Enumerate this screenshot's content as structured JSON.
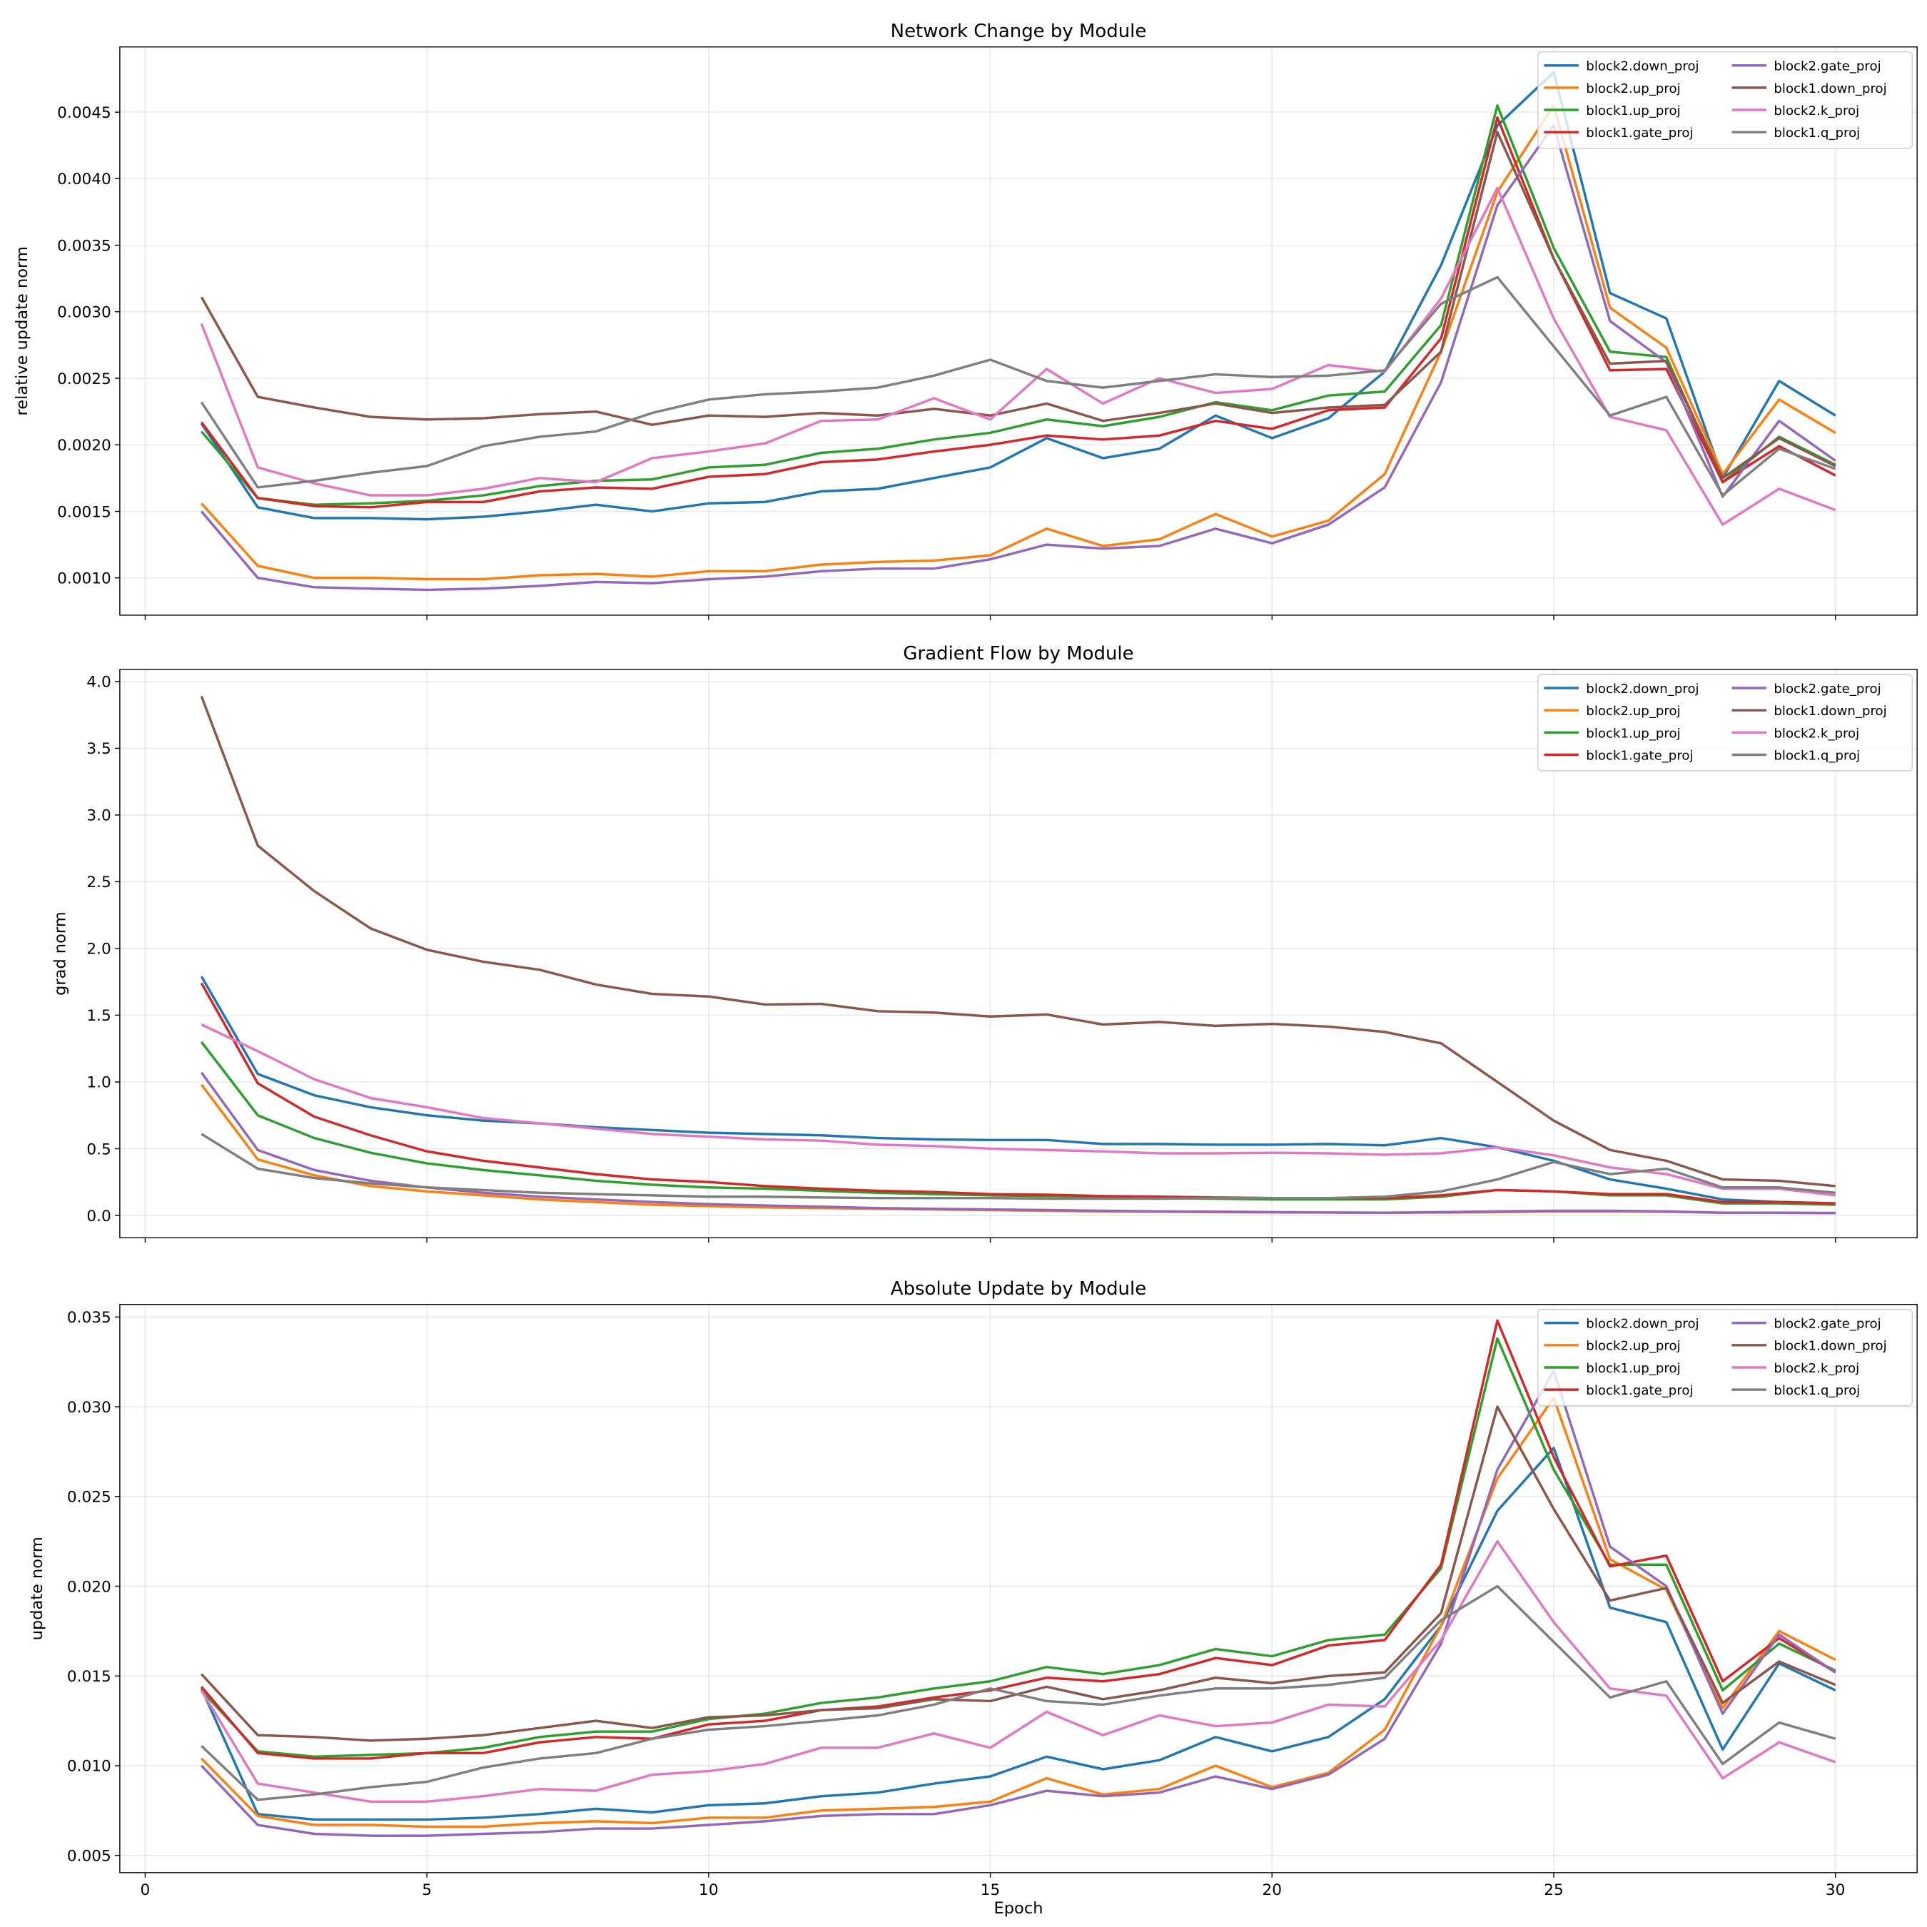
{
  "series_meta": [
    {
      "name": "block2.down_proj",
      "color": "#1f77b4"
    },
    {
      "name": "block2.up_proj",
      "color": "#ff7f0e"
    },
    {
      "name": "block1.up_proj",
      "color": "#2ca02c"
    },
    {
      "name": "block1.gate_proj",
      "color": "#d62728"
    },
    {
      "name": "block2.gate_proj",
      "color": "#9467bd"
    },
    {
      "name": "block1.down_proj",
      "color": "#8c564b"
    },
    {
      "name": "block2.k_proj",
      "color": "#e377c2"
    },
    {
      "name": "block1.q_proj",
      "color": "#7f7f7f"
    }
  ],
  "chart_data": [
    {
      "type": "line",
      "title": "Network Change by Module",
      "xlabel": "",
      "ylabel": "relative update norm",
      "xlim": [
        -0.45,
        31.45
      ],
      "ylim": [
        0.00072,
        0.00499
      ],
      "xticks": [
        0,
        5,
        10,
        15,
        20,
        25,
        30
      ],
      "xtick_labels_shown": false,
      "yticks": [
        "0.0010",
        "0.0015",
        "0.0020",
        "0.0025",
        "0.0030",
        "0.0035",
        "0.0040",
        "0.0045"
      ],
      "grid": true,
      "legend": "top-right",
      "x": [
        1,
        2,
        3,
        4,
        5,
        6,
        7,
        8,
        9,
        10,
        11,
        12,
        13,
        14,
        15,
        16,
        17,
        18,
        19,
        20,
        21,
        22,
        23,
        24,
        25,
        26,
        27,
        28,
        29,
        30
      ],
      "series": [
        {
          "name": "block2.down_proj",
          "values": [
            0.00216,
            0.00153,
            0.00145,
            0.00145,
            0.00144,
            0.00146,
            0.0015,
            0.00155,
            0.0015,
            0.00156,
            0.00157,
            0.00165,
            0.00167,
            0.00175,
            0.00183,
            0.00205,
            0.0019,
            0.00197,
            0.00222,
            0.00205,
            0.0022,
            0.00255,
            0.00335,
            0.0044,
            0.0048,
            0.00314,
            0.00295,
            0.00175,
            0.00248,
            0.00222
          ]
        },
        {
          "name": "block2.up_proj",
          "values": [
            0.00156,
            0.00109,
            0.001,
            0.001,
            0.00099,
            0.00099,
            0.00102,
            0.00103,
            0.00101,
            0.00105,
            0.00105,
            0.0011,
            0.00112,
            0.00113,
            0.00117,
            0.00137,
            0.00124,
            0.00129,
            0.00148,
            0.00131,
            0.00143,
            0.00178,
            0.0027,
            0.0039,
            0.00455,
            0.00303,
            0.00273,
            0.00178,
            0.00234,
            0.00209
          ]
        },
        {
          "name": "block1.up_proj",
          "values": [
            0.0021,
            0.0016,
            0.00155,
            0.00156,
            0.00158,
            0.00162,
            0.00169,
            0.00173,
            0.00174,
            0.00183,
            0.00185,
            0.00194,
            0.00197,
            0.00204,
            0.00209,
            0.00219,
            0.00214,
            0.00221,
            0.00232,
            0.00226,
            0.00237,
            0.0024,
            0.0029,
            0.00455,
            0.00348,
            0.0027,
            0.00266,
            0.00172,
            0.00206,
            0.00185
          ]
        },
        {
          "name": "block1.gate_proj",
          "values": [
            0.00217,
            0.0016,
            0.00154,
            0.00153,
            0.00157,
            0.00157,
            0.00165,
            0.00168,
            0.00167,
            0.00176,
            0.00178,
            0.00187,
            0.00189,
            0.00195,
            0.002,
            0.00207,
            0.00204,
            0.00207,
            0.00218,
            0.00212,
            0.00226,
            0.00228,
            0.0028,
            0.00446,
            0.0034,
            0.00256,
            0.00257,
            0.00172,
            0.00199,
            0.00177
          ]
        },
        {
          "name": "block2.gate_proj",
          "values": [
            0.0015,
            0.001,
            0.00093,
            0.00092,
            0.00091,
            0.00092,
            0.00094,
            0.00097,
            0.00096,
            0.00099,
            0.00101,
            0.00105,
            0.00107,
            0.00107,
            0.00114,
            0.00125,
            0.00122,
            0.00124,
            0.00137,
            0.00126,
            0.0014,
            0.00168,
            0.00247,
            0.0038,
            0.0044,
            0.00293,
            0.00262,
            0.00161,
            0.00218,
            0.00188
          ]
        },
        {
          "name": "block1.down_proj",
          "values": [
            0.00311,
            0.00236,
            0.00228,
            0.00221,
            0.00219,
            0.0022,
            0.00223,
            0.00225,
            0.00215,
            0.00222,
            0.00221,
            0.00224,
            0.00222,
            0.00227,
            0.00222,
            0.00231,
            0.00218,
            0.00224,
            0.00231,
            0.00224,
            0.00228,
            0.0023,
            0.0027,
            0.00435,
            0.0034,
            0.00261,
            0.00263,
            0.00175,
            0.00205,
            0.00184
          ]
        },
        {
          "name": "block2.k_proj",
          "values": [
            0.00291,
            0.00183,
            0.00171,
            0.00162,
            0.00162,
            0.00167,
            0.00175,
            0.00172,
            0.0019,
            0.00195,
            0.00201,
            0.00218,
            0.00219,
            0.00235,
            0.00219,
            0.00257,
            0.00231,
            0.0025,
            0.00239,
            0.00242,
            0.0026,
            0.00255,
            0.0031,
            0.00393,
            0.00295,
            0.00221,
            0.00211,
            0.0014,
            0.00167,
            0.00151
          ]
        },
        {
          "name": "block1.q_proj",
          "values": [
            0.00232,
            0.00168,
            0.00173,
            0.00179,
            0.00184,
            0.00199,
            0.00206,
            0.0021,
            0.00224,
            0.00234,
            0.00238,
            0.0024,
            0.00243,
            0.00252,
            0.00264,
            0.00248,
            0.00243,
            0.00248,
            0.00253,
            0.00251,
            0.00252,
            0.00256,
            0.00306,
            0.00326,
            0.00274,
            0.00222,
            0.00236,
            0.00162,
            0.00197,
            0.00182
          ]
        }
      ]
    },
    {
      "type": "line",
      "title": "Gradient Flow by Module",
      "xlabel": "",
      "ylabel": "grad norm",
      "xlim": [
        -0.45,
        31.45
      ],
      "ylim": [
        -0.167,
        4.09
      ],
      "xticks": [
        0,
        5,
        10,
        15,
        20,
        25,
        30
      ],
      "xtick_labels_shown": false,
      "yticks": [
        "0.0",
        "0.5",
        "1.0",
        "1.5",
        "2.0",
        "2.5",
        "3.0",
        "3.5",
        "4.0"
      ],
      "grid": true,
      "legend": "top-right",
      "x": [
        1,
        2,
        3,
        4,
        5,
        6,
        7,
        8,
        9,
        10,
        11,
        12,
        13,
        14,
        15,
        16,
        17,
        18,
        19,
        20,
        21,
        22,
        23,
        24,
        25,
        26,
        27,
        28,
        29,
        30
      ],
      "series": [
        {
          "name": "block2.down_proj",
          "values": [
            1.79,
            1.06,
            0.9,
            0.81,
            0.75,
            0.71,
            0.69,
            0.66,
            0.64,
            0.62,
            0.61,
            0.6,
            0.58,
            0.57,
            0.565,
            0.565,
            0.535,
            0.535,
            0.53,
            0.53,
            0.535,
            0.525,
            0.58,
            0.51,
            0.41,
            0.27,
            0.2,
            0.12,
            0.1,
            0.09
          ]
        },
        {
          "name": "block2.up_proj",
          "values": [
            0.98,
            0.42,
            0.3,
            0.22,
            0.18,
            0.15,
            0.12,
            0.1,
            0.08,
            0.07,
            0.06,
            0.055,
            0.05,
            0.045,
            0.04,
            0.035,
            0.03,
            0.028,
            0.025,
            0.023,
            0.022,
            0.02,
            0.022,
            0.025,
            0.03,
            0.03,
            0.028,
            0.02,
            0.02,
            0.018
          ]
        },
        {
          "name": "block1.up_proj",
          "values": [
            1.3,
            0.75,
            0.58,
            0.47,
            0.39,
            0.34,
            0.3,
            0.26,
            0.23,
            0.21,
            0.2,
            0.185,
            0.17,
            0.16,
            0.15,
            0.145,
            0.14,
            0.13,
            0.125,
            0.12,
            0.12,
            0.12,
            0.14,
            0.19,
            0.18,
            0.15,
            0.15,
            0.09,
            0.09,
            0.08
          ]
        },
        {
          "name": "block1.gate_proj",
          "values": [
            1.74,
            0.99,
            0.74,
            0.6,
            0.48,
            0.41,
            0.36,
            0.31,
            0.27,
            0.25,
            0.22,
            0.2,
            0.185,
            0.175,
            0.16,
            0.155,
            0.145,
            0.14,
            0.135,
            0.13,
            0.13,
            0.13,
            0.15,
            0.19,
            0.18,
            0.16,
            0.16,
            0.1,
            0.1,
            0.09
          ]
        },
        {
          "name": "block2.gate_proj",
          "values": [
            1.07,
            0.49,
            0.34,
            0.26,
            0.21,
            0.17,
            0.14,
            0.12,
            0.1,
            0.085,
            0.075,
            0.065,
            0.055,
            0.05,
            0.045,
            0.04,
            0.035,
            0.03,
            0.028,
            0.025,
            0.022,
            0.02,
            0.025,
            0.03,
            0.035,
            0.035,
            0.03,
            0.02,
            0.02,
            0.018
          ]
        },
        {
          "name": "block1.down_proj",
          "values": [
            3.89,
            2.77,
            2.43,
            2.15,
            1.99,
            1.9,
            1.84,
            1.73,
            1.66,
            1.64,
            1.58,
            1.585,
            1.53,
            1.52,
            1.49,
            1.505,
            1.43,
            1.45,
            1.42,
            1.435,
            1.415,
            1.375,
            1.29,
            1.0,
            0.71,
            0.49,
            0.41,
            0.27,
            0.26,
            0.22
          ]
        },
        {
          "name": "block2.k_proj",
          "values": [
            1.43,
            1.23,
            1.02,
            0.88,
            0.81,
            0.73,
            0.69,
            0.65,
            0.61,
            0.59,
            0.57,
            0.56,
            0.53,
            0.52,
            0.5,
            0.49,
            0.48,
            0.465,
            0.465,
            0.47,
            0.465,
            0.455,
            0.465,
            0.51,
            0.45,
            0.36,
            0.31,
            0.2,
            0.2,
            0.15
          ]
        },
        {
          "name": "block1.q_proj",
          "values": [
            0.61,
            0.35,
            0.28,
            0.24,
            0.21,
            0.19,
            0.17,
            0.16,
            0.15,
            0.14,
            0.14,
            0.135,
            0.13,
            0.13,
            0.13,
            0.125,
            0.125,
            0.125,
            0.13,
            0.13,
            0.13,
            0.14,
            0.18,
            0.27,
            0.4,
            0.31,
            0.35,
            0.21,
            0.21,
            0.17
          ]
        }
      ]
    },
    {
      "type": "line",
      "title": "Absolute Update by Module",
      "xlabel": "Epoch",
      "ylabel": "update norm",
      "xlim": [
        -0.45,
        31.45
      ],
      "ylim": [
        0.00404,
        0.0357
      ],
      "xticks": [
        0,
        5,
        10,
        15,
        20,
        25,
        30
      ],
      "xtick_labels_shown": true,
      "yticks": [
        "0.005",
        "0.010",
        "0.015",
        "0.020",
        "0.025",
        "0.030",
        "0.035"
      ],
      "grid": true,
      "legend": "top-right",
      "x": [
        1,
        2,
        3,
        4,
        5,
        6,
        7,
        8,
        9,
        10,
        11,
        12,
        13,
        14,
        15,
        16,
        17,
        18,
        19,
        20,
        21,
        22,
        23,
        24,
        25,
        26,
        27,
        28,
        29,
        30
      ],
      "series": [
        {
          "name": "block2.down_proj",
          "values": [
            0.0143,
            0.0073,
            0.007,
            0.007,
            0.007,
            0.0071,
            0.0073,
            0.0076,
            0.0074,
            0.0078,
            0.0079,
            0.0083,
            0.0085,
            0.009,
            0.0094,
            0.0105,
            0.0098,
            0.0103,
            0.0116,
            0.0108,
            0.0116,
            0.0137,
            0.0178,
            0.0242,
            0.0277,
            0.0188,
            0.018,
            0.0109,
            0.0157,
            0.0142
          ]
        },
        {
          "name": "block2.up_proj",
          "values": [
            0.0104,
            0.0072,
            0.0067,
            0.0067,
            0.0066,
            0.0066,
            0.0068,
            0.0069,
            0.0068,
            0.0071,
            0.0071,
            0.0075,
            0.0076,
            0.0077,
            0.008,
            0.0093,
            0.0084,
            0.0087,
            0.01,
            0.0088,
            0.0096,
            0.012,
            0.0178,
            0.026,
            0.0305,
            0.0215,
            0.0198,
            0.0132,
            0.0175,
            0.0159
          ]
        },
        {
          "name": "block1.up_proj",
          "values": [
            0.0142,
            0.0108,
            0.0105,
            0.0106,
            0.0107,
            0.011,
            0.0116,
            0.0119,
            0.0119,
            0.0126,
            0.0129,
            0.0135,
            0.0138,
            0.0143,
            0.0147,
            0.0155,
            0.0151,
            0.0156,
            0.0165,
            0.0161,
            0.017,
            0.0173,
            0.021,
            0.0338,
            0.0265,
            0.0212,
            0.0212,
            0.0142,
            0.0168,
            0.0153
          ]
        },
        {
          "name": "block1.gate_proj",
          "values": [
            0.0144,
            0.0107,
            0.0104,
            0.0104,
            0.0107,
            0.0107,
            0.0113,
            0.0116,
            0.0115,
            0.0123,
            0.0125,
            0.0131,
            0.0133,
            0.0138,
            0.0142,
            0.0149,
            0.0147,
            0.0151,
            0.016,
            0.0156,
            0.0167,
            0.017,
            0.0212,
            0.0348,
            0.0272,
            0.0211,
            0.0217,
            0.0147,
            0.0171,
            0.0152
          ]
        },
        {
          "name": "block2.gate_proj",
          "values": [
            0.01,
            0.0067,
            0.0062,
            0.0061,
            0.0061,
            0.0062,
            0.0063,
            0.0065,
            0.0065,
            0.0067,
            0.0069,
            0.0072,
            0.0073,
            0.0073,
            0.0078,
            0.0086,
            0.0083,
            0.0085,
            0.0094,
            0.0087,
            0.0095,
            0.0115,
            0.0168,
            0.0265,
            0.032,
            0.0222,
            0.02,
            0.0129,
            0.0173,
            0.0152
          ]
        },
        {
          "name": "block1.down_proj",
          "values": [
            0.0151,
            0.0117,
            0.0116,
            0.0114,
            0.0115,
            0.0117,
            0.0121,
            0.0125,
            0.0121,
            0.0127,
            0.0128,
            0.0131,
            0.0132,
            0.0137,
            0.0136,
            0.0144,
            0.0137,
            0.0142,
            0.0149,
            0.0146,
            0.015,
            0.0152,
            0.0185,
            0.03,
            0.0243,
            0.0192,
            0.0199,
            0.0135,
            0.0158,
            0.0145
          ]
        },
        {
          "name": "block2.k_proj",
          "values": [
            0.0142,
            0.009,
            0.0085,
            0.008,
            0.008,
            0.0083,
            0.0087,
            0.0086,
            0.0095,
            0.0097,
            0.0101,
            0.011,
            0.011,
            0.0118,
            0.011,
            0.013,
            0.0117,
            0.0128,
            0.0122,
            0.0124,
            0.0134,
            0.0133,
            0.017,
            0.0225,
            0.018,
            0.0143,
            0.0139,
            0.0093,
            0.0113,
            0.0102
          ]
        },
        {
          "name": "block1.q_proj",
          "values": [
            0.0111,
            0.0081,
            0.0084,
            0.0088,
            0.0091,
            0.0099,
            0.0104,
            0.0107,
            0.0115,
            0.012,
            0.0122,
            0.0125,
            0.0128,
            0.0134,
            0.0143,
            0.0136,
            0.0134,
            0.0139,
            0.0143,
            0.0143,
            0.0145,
            0.0149,
            0.0181,
            0.02,
            0.0169,
            0.0138,
            0.0147,
            0.0101,
            0.0124,
            0.0115
          ]
        }
      ]
    }
  ]
}
